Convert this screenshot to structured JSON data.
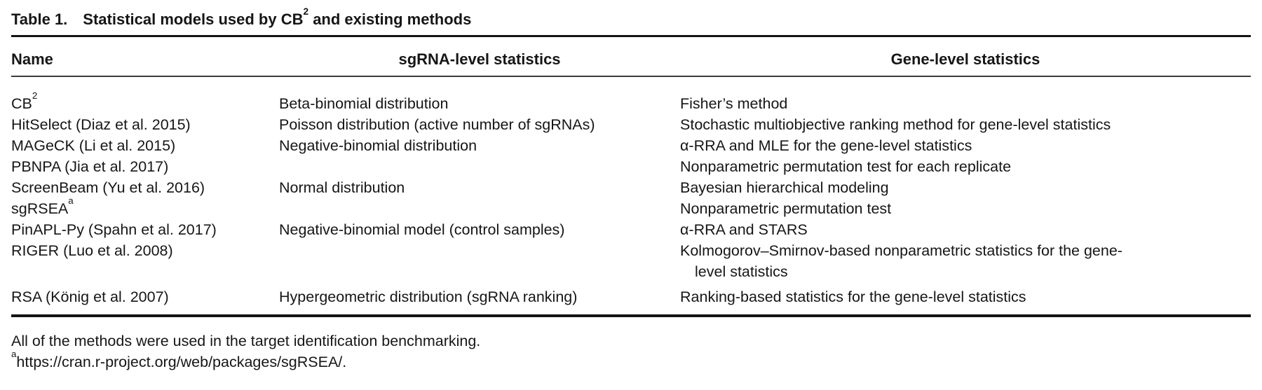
{
  "caption": {
    "label": "Table 1.",
    "title_pre": "Statistical models used by CB",
    "title_sup": "2",
    "title_post": " and existing methods"
  },
  "table": {
    "columns": [
      "Name",
      "sgRNA-level statistics",
      "Gene-level statistics"
    ],
    "rows": [
      {
        "name": "CB",
        "name_sup": "2",
        "sgrna": "Beta-binomial distribution",
        "gene": "Fisher’s method"
      },
      {
        "name": "HitSelect (Diaz et al. 2015)",
        "sgrna": "Poisson distribution (active number of sgRNAs)",
        "gene": "Stochastic multiobjective ranking method for gene-level statistics"
      },
      {
        "name": "MAGeCK (Li et al. 2015)",
        "sgrna": "Negative-binomial distribution",
        "gene": "α-RRA and MLE for the gene-level statistics"
      },
      {
        "name": "PBNPA (Jia et al. 2017)",
        "sgrna": "",
        "gene": "Nonparametric permutation test for each replicate"
      },
      {
        "name": "ScreenBeam (Yu et al. 2016)",
        "sgrna": "Normal distribution",
        "gene": "Bayesian hierarchical modeling"
      },
      {
        "name": "sgRSEA",
        "name_sup": "a",
        "sgrna": "",
        "gene": "Nonparametric permutation test"
      },
      {
        "name": "PinAPL-Py (Spahn et al. 2017)",
        "sgrna": "Negative-binomial model (control samples)",
        "gene": "α-RRA and STARS"
      },
      {
        "name": "RIGER (Luo et al. 2008)",
        "sgrna": "",
        "gene": "Kolmogorov–Smirnov-based nonparametric statistics for the gene-",
        "gene_cont": "level statistics"
      },
      {
        "name": "RSA (König et al. 2007)",
        "sgrna": "Hypergeometric distribution (sgRNA ranking)",
        "gene": "Ranking-based statistics for the gene-level statistics"
      }
    ]
  },
  "footnotes": {
    "line1": "All of the methods were used in the target identification benchmarking.",
    "line2_sup": "a",
    "line2_text": "https://cran.r-project.org/web/packages/sgRSEA/."
  }
}
